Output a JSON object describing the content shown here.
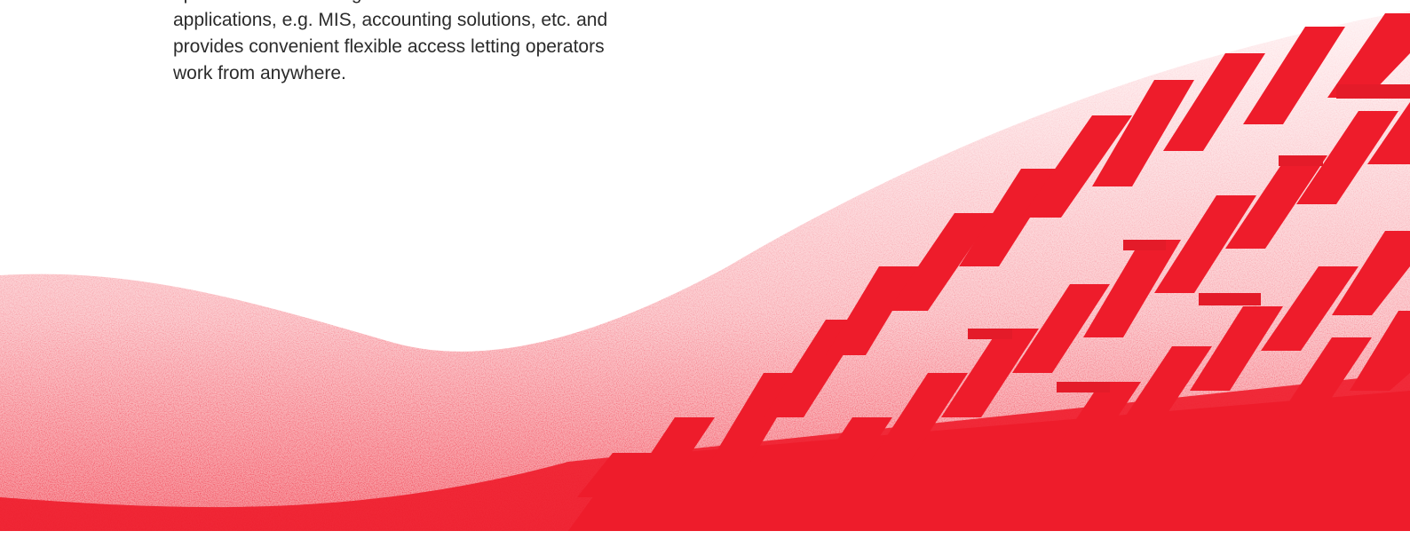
{
  "content": {
    "lines": [
      "operations in one integrated environment.",
      "applications, e.g. MIS, accounting solutions, etc. and",
      "provides convenient flexible access letting operators",
      "work from anywhere."
    ]
  },
  "colors": {
    "accent": "#ee1c2b",
    "text": "#2b2b2b",
    "background": "#ffffff"
  },
  "decoration": {
    "icon": "red-grain-wave-with-zigzag-stripes"
  }
}
